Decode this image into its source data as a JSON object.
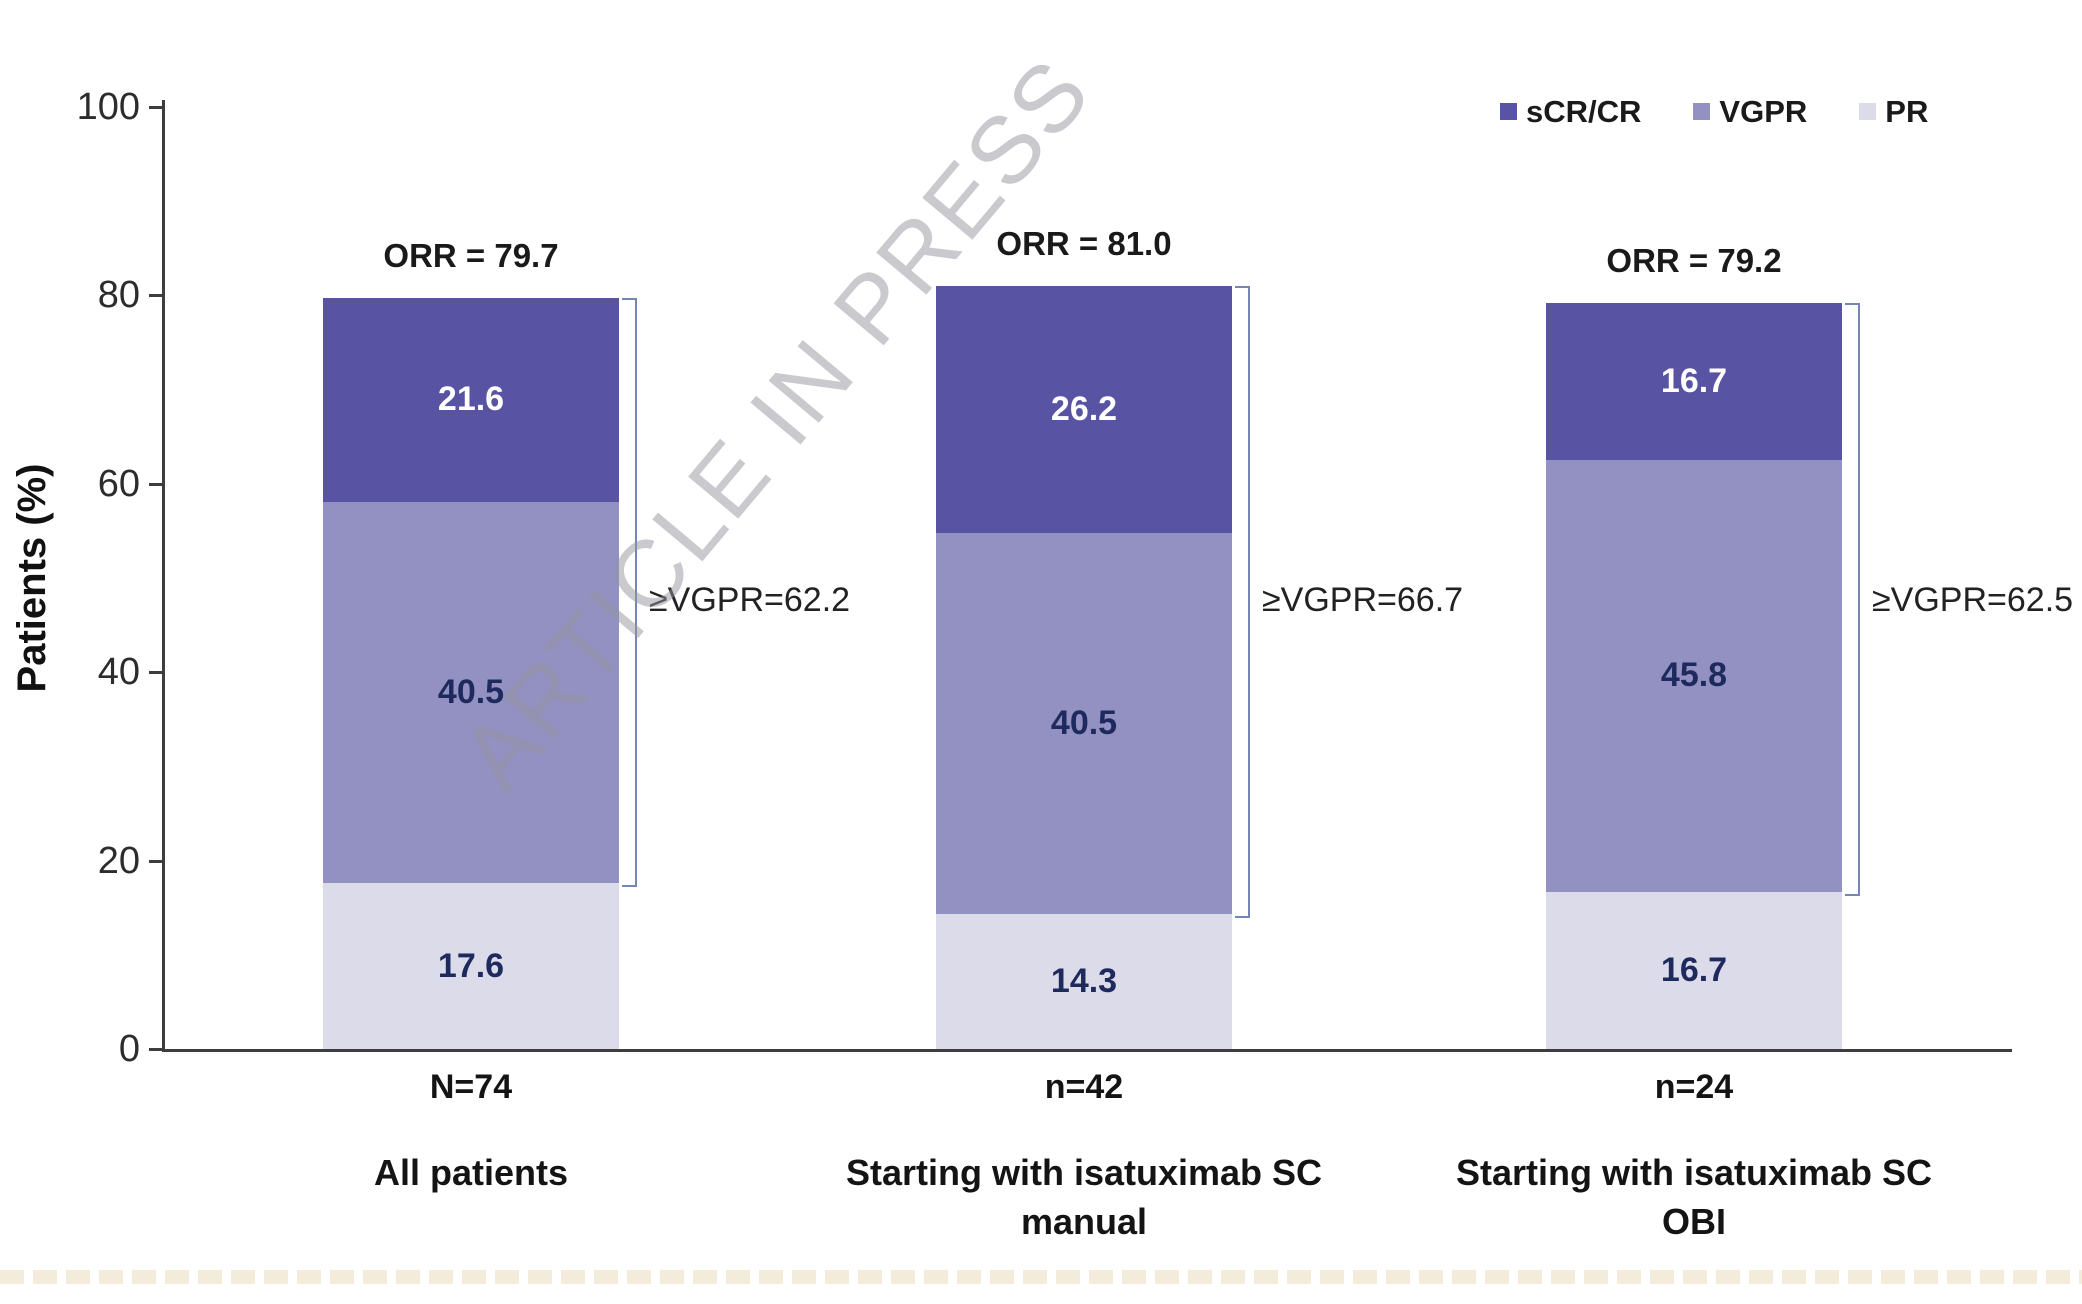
{
  "figure": {
    "watermark": "ARTICLE IN PRESS",
    "y_axis": {
      "label": "Patients (%)"
    },
    "legend": [
      {
        "label": "sCR/CR",
        "color": "#5854a3"
      },
      {
        "label": "VGPR",
        "color": "#9390c2"
      },
      {
        "label": "PR",
        "color": "#dcdbea"
      }
    ]
  },
  "chart_data": {
    "type": "bar",
    "stacked": true,
    "title": "",
    "xlabel": "",
    "ylabel": "Patients (%)",
    "ylim": [
      0,
      100
    ],
    "yticks": [
      0,
      20,
      40,
      60,
      80,
      100
    ],
    "grid": false,
    "legend_position": "top-right",
    "categories": [
      "All patients",
      "Starting with isatuximab SC manual",
      "Starting with isatuximab SC OBI"
    ],
    "category_label_lines": [
      [
        "All patients"
      ],
      [
        "Starting with isatuximab SC",
        "manual"
      ],
      [
        "Starting with isatuximab SC",
        "OBI"
      ]
    ],
    "n_labels": [
      "N=74",
      "n=42",
      "n=24"
    ],
    "series": [
      {
        "name": "PR",
        "color": "#dcdbea",
        "text_color": "#1e2a5e",
        "values": [
          17.6,
          14.3,
          16.7
        ]
      },
      {
        "name": "VGPR",
        "color": "#9390c2",
        "text_color": "#1e2a5e",
        "values": [
          40.5,
          40.5,
          45.8
        ]
      },
      {
        "name": "sCR/CR",
        "color": "#5854a3",
        "text_color": "#ffffff",
        "values": [
          21.6,
          26.2,
          16.7
        ]
      }
    ],
    "totals": [
      79.7,
      81.0,
      79.2
    ],
    "orr_labels": [
      "ORR = 79.7",
      "ORR = 81.0",
      "ORR = 79.2"
    ],
    "ge_vgpr_values": [
      62.2,
      66.7,
      62.5
    ],
    "ge_vgpr_labels": [
      "≥VGPR=62.2",
      "≥VGPR=66.7",
      "≥VGPR=62.5"
    ]
  }
}
